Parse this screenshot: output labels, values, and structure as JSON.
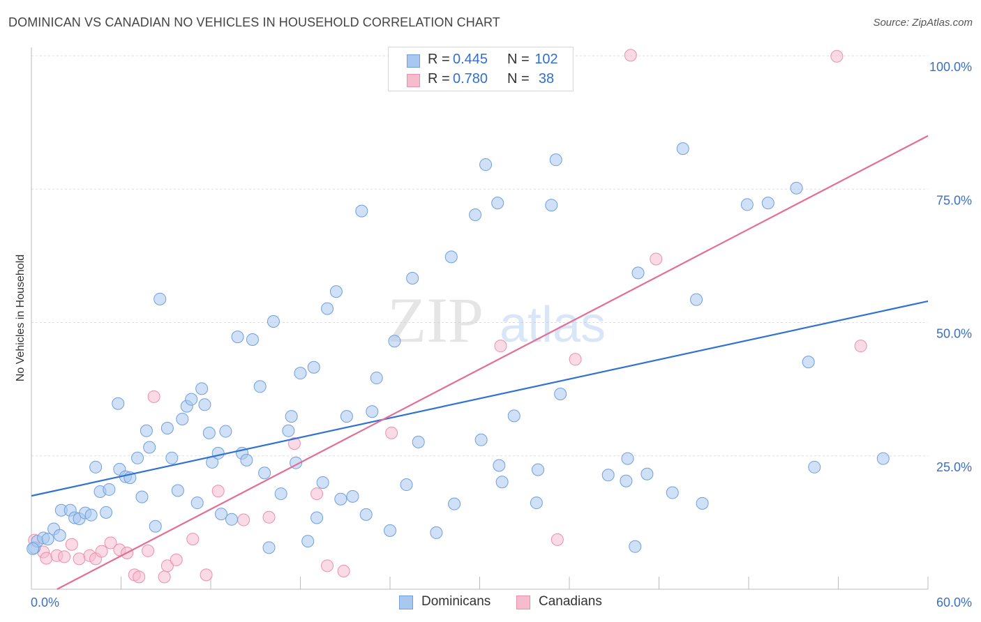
{
  "title": "DOMINICAN VS CANADIAN NO VEHICLES IN HOUSEHOLD CORRELATION CHART",
  "source": "Source: ZipAtlas.com",
  "legend": {
    "rows": [
      {
        "r_label": "R =",
        "r_value": "0.445",
        "n_label": "N =",
        "n_value": "102"
      },
      {
        "r_label": "R =",
        "r_value": "0.780",
        "n_label": "N =",
        "n_value": "38"
      }
    ]
  },
  "bottom_legend": [
    "Dominicans",
    "Canadians"
  ],
  "colors": {
    "dominican_fill": "#a9c8f0",
    "dominican_stroke": "#6d9fe0",
    "dominican_line": "#2f72d0",
    "canadian_fill": "#f6bccd",
    "canadian_stroke": "#ec8fab",
    "canadian_line": "#e46d95",
    "tick_text": "#3a6fc2",
    "grid": "#dddddd"
  },
  "chart_data": {
    "type": "scatter",
    "title": "DOMINICAN VS CANADIAN NO VEHICLES IN HOUSEHOLD CORRELATION CHART",
    "xlabel": "",
    "ylabel": "No Vehicles in Household",
    "xlim": [
      0,
      60
    ],
    "ylim": [
      0,
      100
    ],
    "x_tick_labels": [
      "0.0%",
      "60.0%"
    ],
    "y_tick_labels": [
      {
        "value": 25,
        "label": "25.0%"
      },
      {
        "value": 50,
        "label": "50.0%"
      },
      {
        "value": 75,
        "label": "75.0%"
      },
      {
        "value": 100,
        "label": "100.0%"
      }
    ],
    "grid": "horizontal dashed",
    "legend_position": "top-center",
    "series": [
      {
        "name": "Dominicans",
        "r": 0.445,
        "n": 102,
        "trend": {
          "x": [
            0,
            60
          ],
          "y": [
            17.5,
            54.0
          ]
        },
        "points": [
          [
            0.2,
            7.8
          ],
          [
            0.4,
            9
          ],
          [
            0.8,
            9.6
          ],
          [
            1.1,
            9.4
          ],
          [
            1.5,
            11.3
          ],
          [
            1.9,
            10.1
          ],
          [
            2,
            14.8
          ],
          [
            2.6,
            14.8
          ],
          [
            2.9,
            13.4
          ],
          [
            3.2,
            13.2
          ],
          [
            3.6,
            14.3
          ],
          [
            4,
            13.9
          ],
          [
            4.3,
            22.9
          ],
          [
            4.6,
            18.3
          ],
          [
            5,
            14.4
          ],
          [
            5.2,
            18.7
          ],
          [
            5.8,
            34.8
          ],
          [
            5.9,
            22.5
          ],
          [
            6.3,
            21.1
          ],
          [
            6.6,
            20.9
          ],
          [
            7.1,
            24.6
          ],
          [
            7.4,
            17.3
          ],
          [
            7.7,
            29.7
          ],
          [
            7.9,
            26.6
          ],
          [
            8.3,
            11.8
          ],
          [
            8.6,
            54.4
          ],
          [
            9.1,
            30.2
          ],
          [
            9.4,
            24.6
          ],
          [
            9.8,
            18.5
          ],
          [
            10.1,
            31.9
          ],
          [
            10.4,
            34.3
          ],
          [
            10.7,
            35.6
          ],
          [
            11.1,
            16.2
          ],
          [
            11.4,
            37.6
          ],
          [
            11.6,
            34.6
          ],
          [
            11.9,
            29.3
          ],
          [
            12.1,
            23.8
          ],
          [
            12.5,
            25.5
          ],
          [
            12.7,
            14.1
          ],
          [
            13,
            29.6
          ],
          [
            13.4,
            13.1
          ],
          [
            13.8,
            47.3
          ],
          [
            14.1,
            25.5
          ],
          [
            14.4,
            24.2
          ],
          [
            14.8,
            46.8
          ],
          [
            15.3,
            38
          ],
          [
            15.6,
            21.8
          ],
          [
            15.9,
            7.8
          ],
          [
            16.2,
            50.2
          ],
          [
            16.7,
            17.9
          ],
          [
            17.2,
            29.7
          ],
          [
            17.4,
            32.4
          ],
          [
            17.7,
            23.7
          ],
          [
            18,
            40.5
          ],
          [
            18.5,
            9
          ],
          [
            18.9,
            41.6
          ],
          [
            19.1,
            13.4
          ],
          [
            19.5,
            20
          ],
          [
            19.8,
            52.6
          ],
          [
            20.4,
            55.8
          ],
          [
            20.7,
            16.9
          ],
          [
            21.1,
            32.4
          ],
          [
            21.5,
            17.4
          ],
          [
            22.1,
            70.9
          ],
          [
            22.4,
            14
          ],
          [
            22.8,
            33.3
          ],
          [
            23.1,
            39.6
          ],
          [
            24,
            11
          ],
          [
            24.3,
            46.5
          ],
          [
            25.1,
            19.6
          ],
          [
            25.5,
            58.3
          ],
          [
            25.9,
            27.6
          ],
          [
            27.1,
            10.6
          ],
          [
            28.1,
            62.3
          ],
          [
            28.3,
            16
          ],
          [
            29.7,
            70.2
          ],
          [
            30.1,
            28
          ],
          [
            30.4,
            79.6
          ],
          [
            31.2,
            72.4
          ],
          [
            31.3,
            23.2
          ],
          [
            31.5,
            20.1
          ],
          [
            32.3,
            32.5
          ],
          [
            33.8,
            16.2
          ],
          [
            33.9,
            22.4
          ],
          [
            34.8,
            72
          ],
          [
            35.1,
            80.5
          ],
          [
            35.4,
            36.6
          ],
          [
            38.6,
            21.4
          ],
          [
            39.8,
            20.3
          ],
          [
            39.9,
            24.5
          ],
          [
            40.4,
            8
          ],
          [
            40.6,
            59.3
          ],
          [
            41.2,
            21.6
          ],
          [
            42.9,
            18.1
          ],
          [
            43.6,
            82.6
          ],
          [
            44.5,
            54.3
          ],
          [
            44.9,
            16.1
          ],
          [
            47.9,
            72.1
          ],
          [
            49.3,
            72.4
          ],
          [
            51.2,
            75.2
          ],
          [
            52,
            42.6
          ],
          [
            52.4,
            22.9
          ],
          [
            57,
            24.5
          ],
          [
            0.1,
            7.6
          ]
        ]
      },
      {
        "name": "Canadians",
        "r": 0.78,
        "n": 38,
        "trend": {
          "x": [
            0,
            60
          ],
          "y": [
            -2.5,
            85.0
          ]
        },
        "points": [
          [
            0.2,
            9.2
          ],
          [
            0.8,
            7
          ],
          [
            1,
            5.8
          ],
          [
            1.7,
            6.3
          ],
          [
            2.2,
            6.1
          ],
          [
            2.7,
            8.4
          ],
          [
            3.2,
            5.7
          ],
          [
            3.9,
            6.3
          ],
          [
            4.3,
            5.7
          ],
          [
            4.7,
            7.1
          ],
          [
            5.3,
            8.7
          ],
          [
            5.9,
            7.4
          ],
          [
            6.4,
            6.8
          ],
          [
            6.9,
            2.7
          ],
          [
            7.2,
            2.3
          ],
          [
            7.8,
            7.2
          ],
          [
            8.2,
            36.1
          ],
          [
            8.9,
            2.3
          ],
          [
            9.1,
            4.4
          ],
          [
            9.7,
            5.5
          ],
          [
            10.8,
            9.4
          ],
          [
            11.7,
            2.7
          ],
          [
            12.5,
            18.4
          ],
          [
            14.2,
            13
          ],
          [
            15.9,
            13.5
          ],
          [
            17.6,
            27.3
          ],
          [
            19.1,
            17.9
          ],
          [
            19.8,
            4.4
          ],
          [
            20.9,
            3.4
          ],
          [
            24.1,
            29.3
          ],
          [
            31.4,
            45.6
          ],
          [
            32.2,
            99.9
          ],
          [
            35.2,
            9.3
          ],
          [
            36.4,
            43.1
          ],
          [
            40.1,
            100.1
          ],
          [
            41.8,
            61.9
          ],
          [
            53.9,
            99.9
          ],
          [
            55.5,
            45.6
          ]
        ]
      }
    ]
  }
}
